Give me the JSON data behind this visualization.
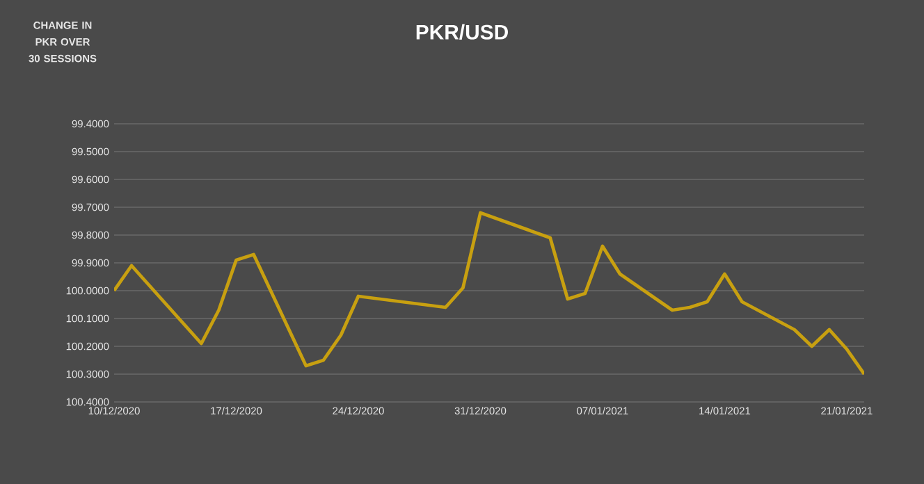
{
  "chart_data": {
    "type": "line",
    "title": "PKR/USD",
    "annotations": [
      "CHANGE IN PKR OVER 30 SESSIONS"
    ],
    "x": [
      "2020-12-10",
      "2020-12-11",
      "2020-12-15",
      "2020-12-16",
      "2020-12-17",
      "2020-12-18",
      "2020-12-21",
      "2020-12-22",
      "2020-12-23",
      "2020-12-24",
      "2020-12-29",
      "2020-12-30",
      "2020-12-31",
      "2021-01-04",
      "2021-01-05",
      "2021-01-06",
      "2021-01-07",
      "2021-01-08",
      "2021-01-11",
      "2021-01-12",
      "2021-01-13",
      "2021-01-14",
      "2021-01-15",
      "2021-01-18",
      "2021-01-19",
      "2021-01-20",
      "2021-01-21",
      "2021-01-22"
    ],
    "series": [
      {
        "color": "#c8a010",
        "values": [
          100.0,
          99.91,
          100.19,
          100.07,
          99.89,
          99.87,
          100.27,
          100.25,
          100.16,
          100.02,
          100.06,
          99.99,
          99.72,
          99.81,
          100.03,
          100.01,
          99.84,
          99.94,
          100.07,
          100.06,
          100.04,
          99.94,
          100.04,
          100.14,
          100.2,
          100.14,
          100.21,
          100.3
        ]
      }
    ],
    "ylim": [
      100.4,
      99.4
    ],
    "yticks": [
      {
        "value": 99.4,
        "label": "99.4000"
      },
      {
        "value": 99.5,
        "label": "99.5000"
      },
      {
        "value": 99.6,
        "label": "99.6000"
      },
      {
        "value": 99.7,
        "label": "99.7000"
      },
      {
        "value": 99.8,
        "label": "99.8000"
      },
      {
        "value": 99.9,
        "label": "99.9000"
      },
      {
        "value": 100.0,
        "label": "100.0000"
      },
      {
        "value": 100.1,
        "label": "100.1000"
      },
      {
        "value": 100.2,
        "label": "100.2000"
      },
      {
        "value": 100.3,
        "label": "100.3000"
      },
      {
        "value": 100.4,
        "label": "100.4000"
      }
    ],
    "xlim": [
      "2020-12-10",
      "2021-01-22"
    ],
    "xticks": [
      {
        "value": "2020-12-10",
        "label": "10/12/2020"
      },
      {
        "value": "2020-12-17",
        "label": "17/12/2020"
      },
      {
        "value": "2020-12-24",
        "label": "24/12/2020"
      },
      {
        "value": "2020-12-31",
        "label": "31/12/2020"
      },
      {
        "value": "2021-01-07",
        "label": "07/01/2021"
      },
      {
        "value": "2021-01-14",
        "label": "14/01/2021"
      },
      {
        "value": "2021-01-21",
        "label": "21/01/2021"
      }
    ],
    "grid": "y",
    "marker": "none",
    "line_style": "solid"
  }
}
